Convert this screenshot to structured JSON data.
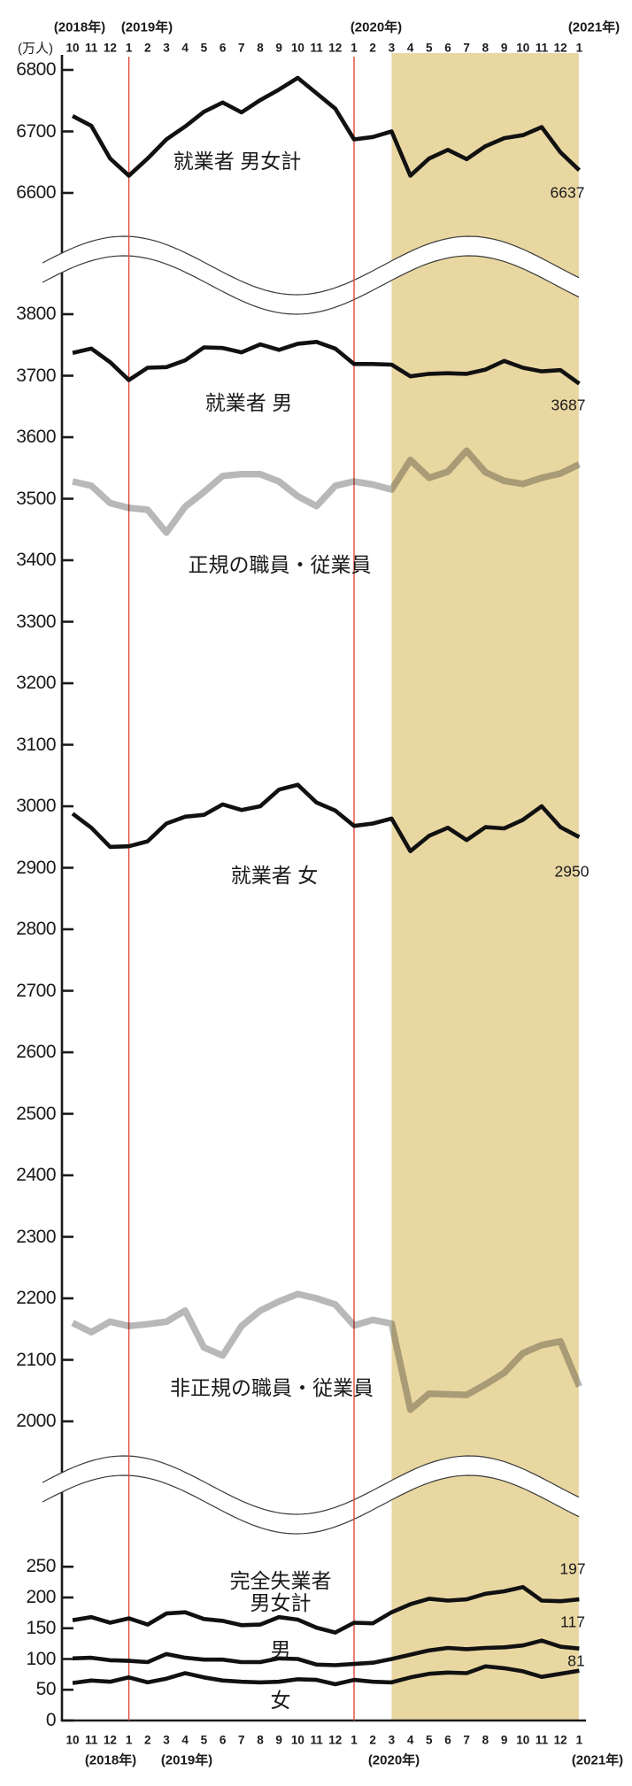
{
  "colors": {
    "line_black": "#111111",
    "line_gray": "rgba(0,0,0,0.28)",
    "highlight_band": "#e9d7a2",
    "reference_line": "#e0463a",
    "axis": "#1a1a1a",
    "break_line": "#3a3a3a"
  },
  "chart_data": {
    "type": "line",
    "unit_label": "(万人)",
    "x_months": [
      "10",
      "11",
      "12",
      "1",
      "2",
      "3",
      "4",
      "5",
      "6",
      "7",
      "8",
      "9",
      "10",
      "11",
      "12",
      "1",
      "2",
      "3",
      "4",
      "5",
      "6",
      "7",
      "8",
      "9",
      "10",
      "11",
      "12",
      "1"
    ],
    "year_labels_top": [
      {
        "text": "(2018年)"
      },
      {
        "text": "(2019年)"
      },
      {
        "text": "(2020年)"
      },
      {
        "text": "(2021年)"
      }
    ],
    "year_labels_bottom": [
      {
        "text": "(2018年)"
      },
      {
        "text": "(2019年)"
      },
      {
        "text": "(2020年)"
      },
      {
        "text": "(2021年)"
      }
    ],
    "panels": [
      {
        "name": "upper",
        "y_ticks": [
          6800,
          6700,
          6600
        ]
      },
      {
        "name": "middle",
        "y_ticks": [
          3800,
          3700,
          3600,
          3500,
          3400,
          3300,
          3200,
          3100,
          3000,
          2900,
          2800,
          2700,
          2600,
          2500,
          2400,
          2300,
          2200,
          2100,
          2000
        ]
      },
      {
        "name": "lower",
        "y_ticks": [
          250,
          200,
          150,
          100,
          50,
          0
        ]
      }
    ],
    "highlight_band": {
      "start_month_index": 17,
      "end_month_index": 27
    },
    "reference_lines": [
      {
        "month_index": 3
      },
      {
        "month_index": 15
      }
    ],
    "series": [
      {
        "name": "就業者 男女計",
        "panel": "upper",
        "style": "black",
        "end_label": "6637",
        "values": [
          6725,
          6709,
          6656,
          6628,
          6656,
          6687,
          6708,
          6732,
          6747,
          6731,
          6751,
          6768,
          6787,
          6762,
          6737,
          6687,
          6691,
          6700,
          6628,
          6656,
          6670,
          6655,
          6676,
          6689,
          6694,
          6707,
          6666,
          6637
        ]
      },
      {
        "name": "就業者 男",
        "panel": "middle",
        "style": "black",
        "end_label": "3687",
        "values": [
          3737,
          3744,
          3722,
          3693,
          3713,
          3714,
          3725,
          3746,
          3745,
          3738,
          3751,
          3742,
          3752,
          3755,
          3744,
          3719,
          3719,
          3718,
          3699,
          3703,
          3704,
          3703,
          3710,
          3724,
          3713,
          3707,
          3709,
          3687
        ]
      },
      {
        "name": "正規の職員・従業員",
        "panel": "middle",
        "style": "gray",
        "end_label": "",
        "values": [
          3528,
          3521,
          3493,
          3485,
          3482,
          3445,
          3487,
          3511,
          3537,
          3540,
          3540,
          3528,
          3504,
          3488,
          3521,
          3528,
          3523,
          3515,
          3563,
          3534,
          3544,
          3578,
          3543,
          3529,
          3524,
          3534,
          3541,
          3556
        ]
      },
      {
        "name": "就業者 女",
        "panel": "middle",
        "style": "black",
        "end_label": "2950",
        "values": [
          2988,
          2965,
          2934,
          2935,
          2943,
          2972,
          2983,
          2986,
          3003,
          2994,
          3000,
          3027,
          3035,
          3006,
          2993,
          2968,
          2972,
          2980,
          2927,
          2952,
          2965,
          2945,
          2966,
          2964,
          2978,
          3000,
          2966,
          2950
        ]
      },
      {
        "name": "非正規の職員・従業員",
        "panel": "middle",
        "style": "gray",
        "end_label": "",
        "values": [
          2160,
          2145,
          2162,
          2155,
          2158,
          2162,
          2180,
          2120,
          2107,
          2155,
          2180,
          2195,
          2207,
          2200,
          2190,
          2156,
          2165,
          2159,
          2019,
          2045,
          2044,
          2043,
          2060,
          2079,
          2111,
          2124,
          2130,
          2057
        ]
      },
      {
        "name": "完全失業者 男女計",
        "label_lines": [
          "完全失業者",
          "男女計"
        ],
        "panel": "lower",
        "style": "black",
        "end_label": "197",
        "values": [
          163,
          168,
          159,
          166,
          156,
          174,
          176,
          165,
          162,
          155,
          156,
          168,
          164,
          151,
          143,
          159,
          158,
          176,
          189,
          198,
          195,
          197,
          206,
          210,
          217,
          195,
          194,
          197
        ]
      },
      {
        "name": "男",
        "panel": "lower",
        "style": "black",
        "end_label": "117",
        "values": [
          101,
          102,
          98,
          97,
          95,
          108,
          102,
          99,
          99,
          95,
          95,
          101,
          100,
          91,
          90,
          92,
          94,
          100,
          107,
          114,
          118,
          116,
          118,
          119,
          122,
          130,
          120,
          117
        ]
      },
      {
        "name": "女",
        "panel": "lower",
        "style": "black",
        "end_label": "81",
        "values": [
          61,
          65,
          63,
          70,
          62,
          68,
          77,
          70,
          65,
          63,
          62,
          63,
          67,
          66,
          59,
          66,
          63,
          62,
          70,
          76,
          78,
          77,
          88,
          85,
          80,
          71,
          76,
          81
        ]
      }
    ]
  }
}
